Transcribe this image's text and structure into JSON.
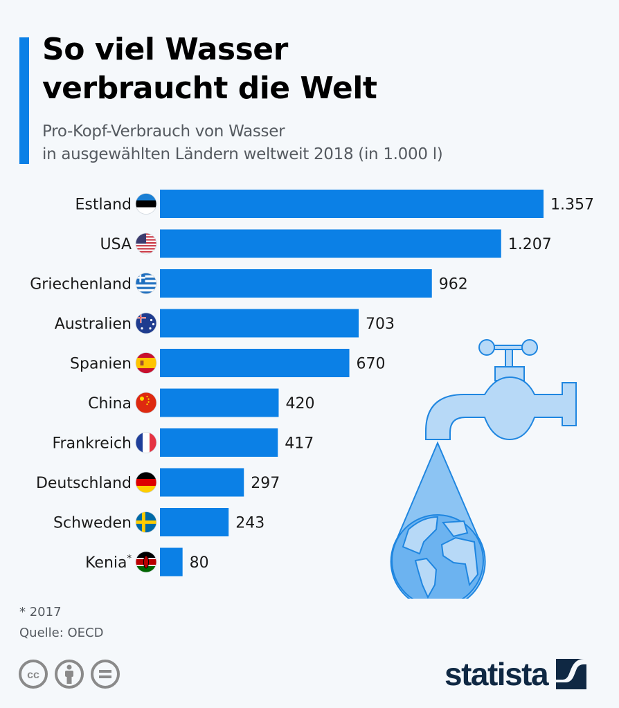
{
  "header": {
    "title_line1": "So viel Wasser",
    "title_line2": "verbraucht die Welt",
    "subtitle_line1": "Pro-Kopf-Verbrauch von Wasser",
    "subtitle_line2": "in ausgewählten Ländern weltweit 2018 (in 1.000 l)"
  },
  "colors": {
    "accent": "#0b80e6",
    "bar": "#0b80e6",
    "text": "#1a1a1a",
    "logo": "#0f2843"
  },
  "chart_data": {
    "type": "bar",
    "orientation": "horizontal",
    "title": "So viel Wasser verbraucht die Welt",
    "subtitle": "Pro-Kopf-Verbrauch von Wasser in ausgewählten Ländern weltweit 2018 (in 1.000 l)",
    "xlabel": "",
    "ylabel": "",
    "unit": "1.000 l",
    "categories": [
      "Estland",
      "USA",
      "Griechenland",
      "Australien",
      "Spanien",
      "China",
      "Frankreich",
      "Deutschland",
      "Schweden",
      "Kenia*"
    ],
    "values": [
      1357,
      1207,
      962,
      703,
      670,
      420,
      417,
      297,
      243,
      80
    ],
    "value_labels": [
      "1.357",
      "1.207",
      "962",
      "703",
      "670",
      "420",
      "417",
      "297",
      "243",
      "80"
    ],
    "flags": [
      "flag-estonia",
      "flag-usa",
      "flag-greece",
      "flag-australia",
      "flag-spain",
      "flag-china",
      "flag-france",
      "flag-germany",
      "flag-sweden",
      "flag-kenya"
    ],
    "xlim": [
      0,
      1357
    ],
    "grid": false,
    "legend": "none"
  },
  "footer": {
    "footnote": "* 2017",
    "source": "Quelle: OECD",
    "license_icons": [
      "cc-icon",
      "attribution-icon",
      "no-derivatives-icon"
    ],
    "logo_text": "statista"
  }
}
